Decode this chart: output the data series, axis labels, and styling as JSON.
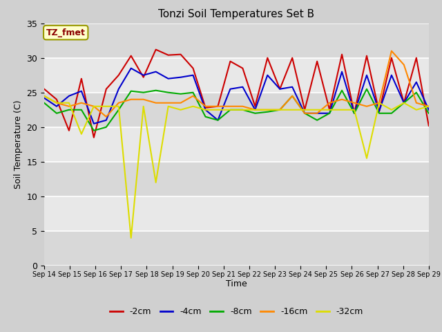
{
  "title": "Tonzi Soil Temperatures Set B",
  "xlabel": "Time",
  "ylabel": "Soil Temperature (C)",
  "ylim": [
    0,
    35
  ],
  "annotation": "TZ_fmet",
  "x_tick_labels": [
    "Sep 14",
    "Sep 15",
    "Sep 16",
    "Sep 17",
    "Sep 18",
    "Sep 19",
    "Sep 20",
    "Sep 21",
    "Sep 22",
    "Sep 23",
    "Sep 24",
    "Sep 25",
    "Sep 26",
    "Sep 27",
    "Sep 28",
    "Sep 29"
  ],
  "series": {
    "-2cm": {
      "color": "#cc0000",
      "values": [
        25.5,
        24.0,
        19.5,
        27.0,
        18.5,
        25.5,
        27.5,
        30.3,
        27.2,
        31.2,
        30.4,
        30.5,
        28.5,
        22.8,
        23.0,
        29.5,
        28.5,
        23.0,
        30.0,
        25.5,
        30.0,
        22.5,
        29.5,
        22.5,
        30.5,
        22.0,
        30.3,
        22.2,
        30.0,
        23.5,
        30.0,
        20.2
      ]
    },
    "-4cm": {
      "color": "#0000cc",
      "values": [
        24.2,
        23.0,
        24.5,
        25.2,
        20.5,
        21.0,
        25.5,
        28.5,
        27.5,
        28.0,
        27.0,
        27.2,
        27.5,
        22.5,
        21.0,
        25.5,
        25.8,
        22.5,
        27.5,
        25.5,
        25.8,
        22.0,
        22.0,
        22.0,
        28.0,
        22.0,
        27.5,
        22.3,
        27.5,
        23.5,
        26.5,
        22.5
      ]
    },
    "-8cm": {
      "color": "#00aa00",
      "values": [
        23.5,
        22.0,
        22.5,
        22.5,
        19.5,
        20.0,
        22.5,
        25.2,
        25.0,
        25.3,
        25.0,
        24.8,
        25.0,
        21.5,
        21.0,
        22.5,
        22.5,
        22.0,
        22.2,
        22.5,
        24.5,
        22.0,
        21.0,
        22.0,
        25.3,
        22.0,
        25.5,
        22.0,
        22.0,
        23.5,
        25.0,
        22.0
      ]
    },
    "-16cm": {
      "color": "#ff8800",
      "values": [
        24.5,
        23.5,
        23.0,
        23.5,
        23.0,
        21.5,
        23.5,
        24.0,
        24.0,
        23.5,
        23.5,
        23.5,
        24.5,
        23.0,
        23.0,
        23.0,
        23.0,
        22.5,
        22.5,
        22.5,
        24.5,
        22.0,
        22.0,
        23.5,
        24.0,
        23.5,
        23.0,
        23.5,
        31.0,
        29.0,
        23.5,
        23.0
      ]
    },
    "-32cm": {
      "color": "#dddd00",
      "values": [
        24.5,
        23.5,
        23.5,
        19.0,
        23.0,
        23.0,
        23.0,
        4.0,
        23.0,
        12.0,
        23.0,
        22.5,
        23.0,
        22.5,
        22.5,
        22.5,
        22.5,
        22.5,
        22.5,
        22.5,
        22.5,
        22.5,
        22.5,
        22.5,
        22.5,
        22.5,
        15.5,
        23.5,
        22.5,
        23.5,
        22.5,
        23.0
      ]
    }
  },
  "legend_order": [
    "-2cm",
    "-4cm",
    "-8cm",
    "-16cm",
    "-32cm"
  ],
  "fig_bg": "#d0d0d0",
  "plot_bg": "#e8e8e8",
  "band_colors": [
    "#d8d8d8",
    "#e8e8e8"
  ]
}
